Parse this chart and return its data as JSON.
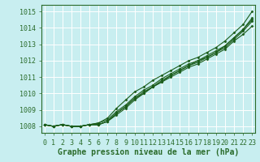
{
  "xlabel": "Graphe pression niveau de la mer (hPa)",
  "ylim": [
    1007.6,
    1015.4
  ],
  "xlim": [
    -0.3,
    23.3
  ],
  "yticks": [
    1008,
    1009,
    1010,
    1011,
    1012,
    1013,
    1014,
    1015
  ],
  "xticks": [
    0,
    1,
    2,
    3,
    4,
    5,
    6,
    7,
    8,
    9,
    10,
    11,
    12,
    13,
    14,
    15,
    16,
    17,
    18,
    19,
    20,
    21,
    22,
    23
  ],
  "bg_color": "#c8eef0",
  "grid_color": "#ffffff",
  "line_color": "#1a5c1a",
  "border_color": "#2a6b2a",
  "lines": [
    [
      1008.1,
      1008.0,
      1008.1,
      1008.0,
      1008.0,
      1008.1,
      1008.1,
      1008.3,
      1008.7,
      1009.1,
      1009.6,
      1010.0,
      1010.4,
      1010.7,
      1011.0,
      1011.3,
      1011.6,
      1011.8,
      1012.1,
      1012.4,
      1012.7,
      1013.2,
      1013.6,
      1014.1
    ],
    [
      1008.1,
      1008.0,
      1008.1,
      1008.0,
      1008.0,
      1008.1,
      1008.1,
      1008.3,
      1008.8,
      1009.2,
      1009.7,
      1010.1,
      1010.4,
      1010.8,
      1011.1,
      1011.4,
      1011.7,
      1012.0,
      1012.2,
      1012.5,
      1012.8,
      1013.3,
      1013.8,
      1014.4
    ],
    [
      1008.1,
      1008.0,
      1008.1,
      1008.0,
      1008.0,
      1008.1,
      1008.1,
      1008.3,
      1008.8,
      1009.2,
      1009.7,
      1010.0,
      1010.4,
      1010.7,
      1011.1,
      1011.4,
      1011.7,
      1011.9,
      1012.2,
      1012.5,
      1012.9,
      1013.4,
      1013.9,
      1014.5
    ],
    [
      1008.1,
      1008.0,
      1008.1,
      1008.0,
      1008.0,
      1008.1,
      1008.2,
      1008.4,
      1008.9,
      1009.3,
      1009.8,
      1010.2,
      1010.5,
      1010.9,
      1011.2,
      1011.5,
      1011.8,
      1012.0,
      1012.3,
      1012.6,
      1012.9,
      1013.4,
      1013.9,
      1014.6
    ],
    [
      1008.1,
      1008.0,
      1008.1,
      1008.0,
      1008.0,
      1008.1,
      1008.2,
      1008.5,
      1009.1,
      1009.6,
      1010.1,
      1010.4,
      1010.8,
      1011.1,
      1011.4,
      1011.7,
      1012.0,
      1012.2,
      1012.5,
      1012.8,
      1013.2,
      1013.7,
      1014.2,
      1015.0
    ]
  ],
  "tick_fontsize": 6.0,
  "label_fontsize": 7.0,
  "label_fontweight": "bold"
}
